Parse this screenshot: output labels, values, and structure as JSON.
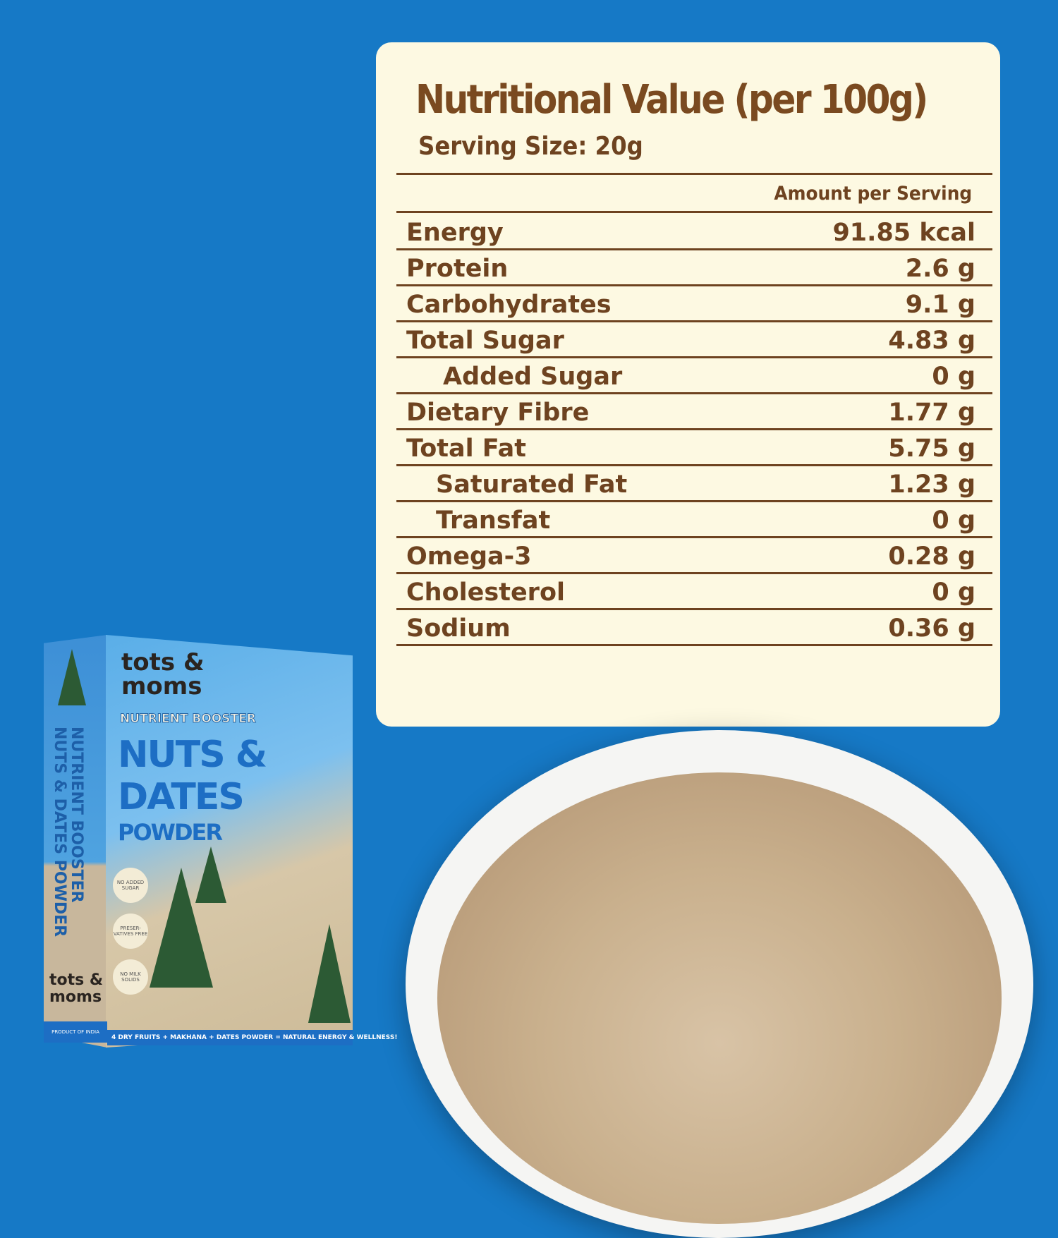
{
  "panel": {
    "title": "Nutritional Value (per 100g)",
    "serving_size": "Serving Size: 20g",
    "column_header": "Amount per Serving",
    "rows": [
      {
        "name": "Energy",
        "value": "91.85 kcal"
      },
      {
        "name": "Protein",
        "value": "2.6 g"
      },
      {
        "name": "Carbohydrates",
        "value": "9.1 g"
      },
      {
        "name": "Total Sugar",
        "value": "4.83 g"
      },
      {
        "name": "Added Sugar",
        "value": "0 g"
      },
      {
        "name": "Dietary Fibre",
        "value": "1.77 g"
      },
      {
        "name": "Total Fat",
        "value": "5.75 g"
      },
      {
        "name": "Saturated Fat",
        "value": "1.23 g"
      },
      {
        "name": "Transfat",
        "value": "0 g"
      },
      {
        "name": "Omega-3",
        "value": "0.28 g"
      },
      {
        "name": "Cholesterol",
        "value": "0 g"
      },
      {
        "name": "Sodium",
        "value": "0.36 g"
      }
    ]
  },
  "product_box": {
    "brand": "tots & moms",
    "subtitle": "NUTRIENT BOOSTER",
    "name_line1": "NUTS &",
    "name_line2": "DATES",
    "name_line3": "POWDER",
    "side_text": "NUTRIENT BOOSTER NUTS & DATES POWDER",
    "badges": [
      "NO ADDED SUGAR",
      "PRESER-VATIVES FREE",
      "NO MILK SOLIDS"
    ],
    "bottom_strip": "4 DRY FRUITS + MAKHANA + DATES POWDER = NATURAL ENERGY & WELLNESS!",
    "side_bottom": "PRODUCT OF INDIA"
  },
  "colors": {
    "background": "#1679c6",
    "panel": "#fdf9e2",
    "text": "#6e4320"
  }
}
